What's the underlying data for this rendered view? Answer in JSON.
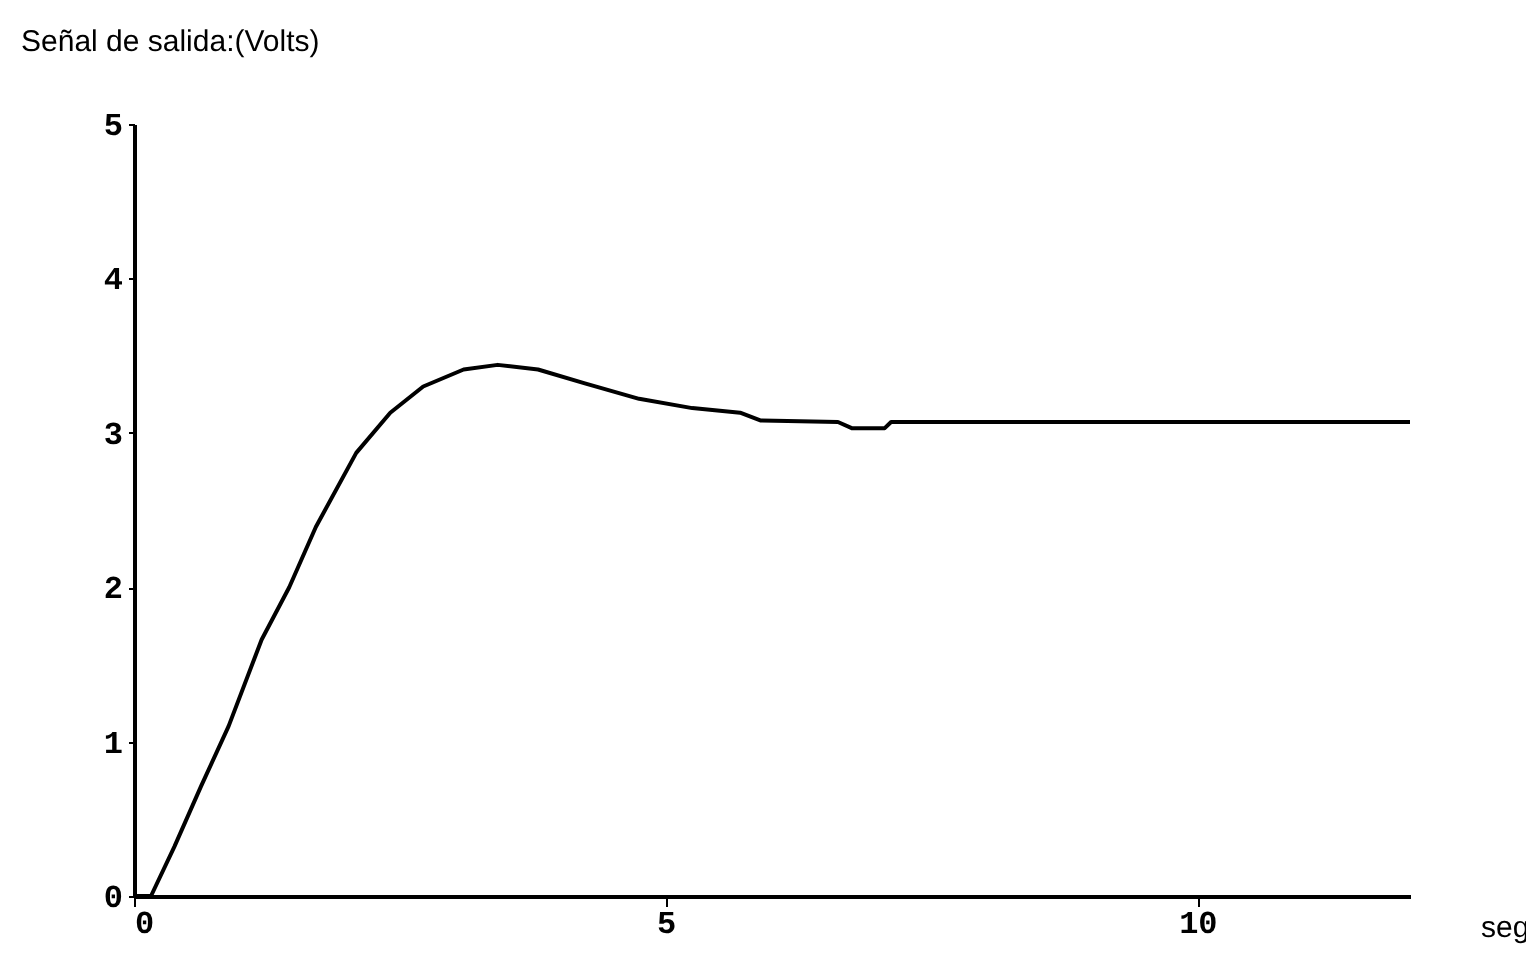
{
  "chart_data": {
    "type": "line",
    "xlabel": "seg",
    "ylabel": "Señal de salida:(Volts)",
    "xlim": [
      0,
      12
    ],
    "ylim": [
      0,
      5
    ],
    "xticks": [
      0,
      5,
      10
    ],
    "yticks": [
      0,
      1,
      2,
      3,
      4,
      5
    ],
    "grid": false,
    "marker": "none",
    "line_style": "solid",
    "series": [
      {
        "color": "#000000",
        "x": [
          0,
          0.16,
          0.38,
          0.63,
          0.89,
          1.2,
          1.46,
          1.71,
          2.09,
          2.41,
          2.72,
          3.1,
          3.42,
          3.8,
          4.24,
          4.75,
          5.25,
          5.7,
          5.89,
          6.62,
          6.75,
          7.06,
          7.12,
          12
        ],
        "values": [
          0,
          0,
          0.32,
          0.71,
          1.1,
          1.66,
          2,
          2.39,
          2.87,
          3.13,
          3.3,
          3.41,
          3.44,
          3.41,
          3.32,
          3.22,
          3.16,
          3.13,
          3.08,
          3.07,
          3.03,
          3.03,
          3.07,
          3.07
        ]
      }
    ]
  }
}
